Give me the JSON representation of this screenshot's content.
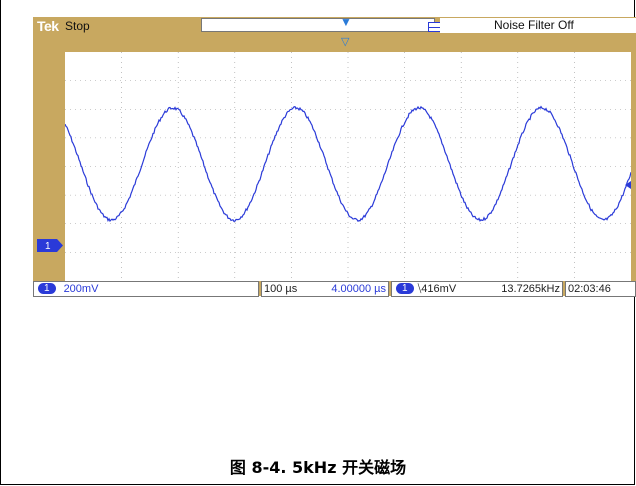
{
  "topbar": {
    "brand": "Tek",
    "run_state": "Stop",
    "noise_filter": "Noise Filter Off"
  },
  "channel": {
    "id": "1"
  },
  "bottombar": {
    "ch_scale": "200mV",
    "timebase": "100 µs",
    "position": "4.00000 µs",
    "trigger_slope_icon": "falling-edge-icon",
    "trigger_level": "⧹416mV",
    "frequency": "13.7265kHz",
    "clock": "02:03:46"
  },
  "colors": {
    "trace": "#2a3ad8",
    "frame": "#c8a860",
    "grid_bg": "#ffffff"
  },
  "caption": "图 8-4. 5kHz 开关磁场"
}
